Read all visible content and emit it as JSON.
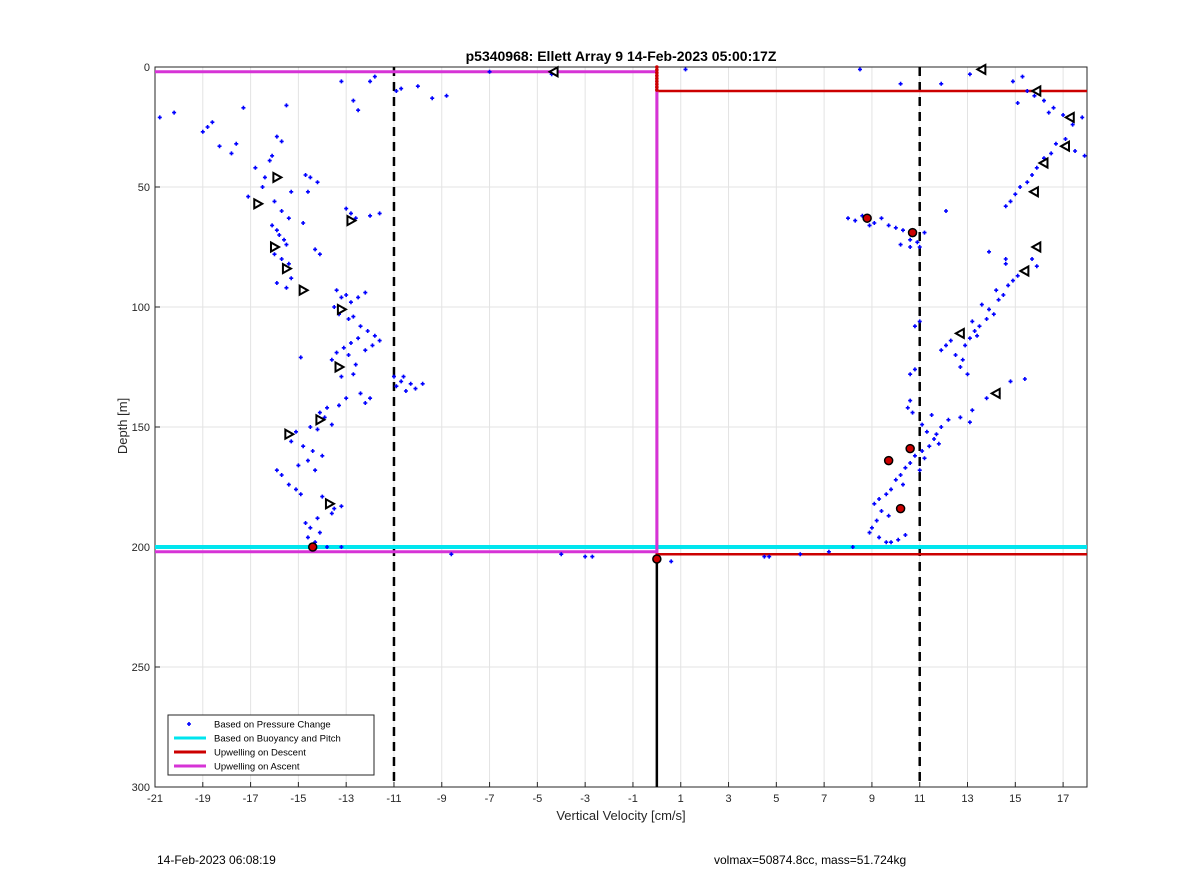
{
  "chart_data": {
    "type": "scatter",
    "title": "p5340968: Ellett Array 9 14-Feb-2023 05:00:17Z",
    "xlabel": "Vertical Velocity [cm/s]",
    "ylabel": "Depth [m]",
    "xlim": [
      -21,
      18
    ],
    "ylim": [
      0,
      300
    ],
    "y_reversed": true,
    "xticks": [
      -21,
      -19,
      -17,
      -15,
      -13,
      -11,
      -9,
      -7,
      -5,
      -3,
      -1,
      1,
      3,
      5,
      7,
      9,
      11,
      13,
      15,
      17
    ],
    "yticks": [
      0,
      50,
      100,
      150,
      200,
      250,
      300
    ],
    "grid": true,
    "legend_position": "bottom-left",
    "legend": [
      {
        "label": "Based on Pressure Change",
        "color": "#0000ff",
        "style": "dot"
      },
      {
        "label": "Based on Buoyancy and Pitch",
        "color": "#00e5ee",
        "style": "line"
      },
      {
        "label": "Upwelling on Descent",
        "color": "#cc0000",
        "style": "line"
      },
      {
        "label": "Upwelling on Ascent",
        "color": "#d633d6",
        "style": "line"
      }
    ],
    "colors": {
      "pressure_points": "#0000ff",
      "buoyancy_line": "#00e5ee",
      "descent_line": "#cc0000",
      "ascent_line": "#d633d6",
      "threshold_lines": "#000000",
      "zero_line": "#000000"
    },
    "threshold_x": [
      -11,
      11
    ],
    "zero_x": 0,
    "lines": {
      "ascent": [
        [
          -21,
          2
        ],
        [
          0,
          2
        ],
        [
          0,
          202
        ],
        [
          -21,
          202
        ]
      ],
      "descent": [
        [
          18,
          10
        ],
        [
          0,
          10
        ],
        [
          0,
          203
        ],
        [
          18,
          203
        ]
      ],
      "buoyancy": [
        [
          -21,
          200
        ],
        [
          18,
          200
        ]
      ]
    },
    "pressure_points": [
      [
        -20.8,
        21
      ],
      [
        -20.2,
        19
      ],
      [
        -19,
        27
      ],
      [
        -18.8,
        25
      ],
      [
        -18.6,
        23
      ],
      [
        -18.3,
        33
      ],
      [
        -17.8,
        36
      ],
      [
        -17.6,
        32
      ],
      [
        -17.3,
        17
      ],
      [
        -16.8,
        42
      ],
      [
        -17.1,
        54
      ],
      [
        -16.5,
        50
      ],
      [
        -16.4,
        46
      ],
      [
        -16.2,
        39
      ],
      [
        -16.1,
        37
      ],
      [
        -15.9,
        29
      ],
      [
        -15.7,
        31
      ],
      [
        -15.5,
        16
      ],
      [
        -16.0,
        56
      ],
      [
        -15.7,
        60
      ],
      [
        -15.3,
        52
      ],
      [
        -15.4,
        63
      ],
      [
        -16.1,
        66
      ],
      [
        -15.9,
        68
      ],
      [
        -15.8,
        70
      ],
      [
        -15.6,
        72
      ],
      [
        -15.5,
        74
      ],
      [
        -16.0,
        78
      ],
      [
        -15.7,
        80
      ],
      [
        -15.4,
        82
      ],
      [
        -15.3,
        88
      ],
      [
        -15.9,
        90
      ],
      [
        -15.5,
        92
      ],
      [
        -14.7,
        45
      ],
      [
        -14.5,
        46
      ],
      [
        -14.2,
        48
      ],
      [
        -14.6,
        52
      ],
      [
        -14.8,
        65
      ],
      [
        -14.3,
        76
      ],
      [
        -14.1,
        78
      ],
      [
        -13.2,
        6
      ],
      [
        -12.7,
        14
      ],
      [
        -12.5,
        18
      ],
      [
        -12.0,
        6
      ],
      [
        -11.8,
        4
      ],
      [
        -13.0,
        59
      ],
      [
        -12.8,
        61
      ],
      [
        -12.6,
        63
      ],
      [
        -12.0,
        62
      ],
      [
        -11.6,
        61
      ],
      [
        -13.4,
        93
      ],
      [
        -13.2,
        96
      ],
      [
        -13.0,
        95
      ],
      [
        -12.8,
        98
      ],
      [
        -12.5,
        96
      ],
      [
        -12.2,
        94
      ],
      [
        -13.5,
        100
      ],
      [
        -13.3,
        103
      ],
      [
        -12.9,
        105
      ],
      [
        -12.7,
        104
      ],
      [
        -12.4,
        108
      ],
      [
        -12.1,
        110
      ],
      [
        -11.8,
        112
      ],
      [
        -11.6,
        114
      ],
      [
        -11.9,
        116
      ],
      [
        -12.2,
        118
      ],
      [
        -12.5,
        113
      ],
      [
        -12.8,
        115
      ],
      [
        -13.1,
        117
      ],
      [
        -13.4,
        119
      ],
      [
        -13.6,
        122
      ],
      [
        -12.9,
        120
      ],
      [
        -12.6,
        124
      ],
      [
        -12.7,
        128
      ],
      [
        -13.2,
        129
      ],
      [
        -14.9,
        121
      ],
      [
        -13.0,
        138
      ],
      [
        -12.4,
        136
      ],
      [
        -12.2,
        140
      ],
      [
        -12.0,
        138
      ],
      [
        -13.3,
        141
      ],
      [
        -13.8,
        142
      ],
      [
        -14.1,
        144
      ],
      [
        -13.9,
        146
      ],
      [
        -13.6,
        149
      ],
      [
        -14.2,
        151
      ],
      [
        -14.5,
        150
      ],
      [
        -15.1,
        152
      ],
      [
        -15.3,
        156
      ],
      [
        -14.8,
        158
      ],
      [
        -14.4,
        160
      ],
      [
        -14.0,
        162
      ],
      [
        -14.6,
        164
      ],
      [
        -15.0,
        166
      ],
      [
        -14.3,
        168
      ],
      [
        -15.9,
        168
      ],
      [
        -15.7,
        170
      ],
      [
        -15.4,
        174
      ],
      [
        -15.1,
        176
      ],
      [
        -14.9,
        178
      ],
      [
        -14.0,
        179
      ],
      [
        -13.8,
        181
      ],
      [
        -13.5,
        184
      ],
      [
        -13.2,
        183
      ],
      [
        -13.6,
        186
      ],
      [
        -14.2,
        188
      ],
      [
        -14.7,
        190
      ],
      [
        -14.5,
        192
      ],
      [
        -14.1,
        194
      ],
      [
        -14.6,
        196
      ],
      [
        -14.3,
        198
      ],
      [
        -13.8,
        200
      ],
      [
        -13.2,
        200
      ],
      [
        -14.4,
        201
      ],
      [
        -10.9,
        133
      ],
      [
        -10.7,
        131
      ],
      [
        -10.5,
        135
      ],
      [
        -10.3,
        132
      ],
      [
        -10.1,
        134
      ],
      [
        -9.8,
        132
      ],
      [
        -10.6,
        129
      ],
      [
        -11.0,
        129
      ],
      [
        -10.9,
        10
      ],
      [
        -10.7,
        9
      ],
      [
        -10.0,
        8
      ],
      [
        -9.4,
        13
      ],
      [
        -8.8,
        12
      ],
      [
        -8.6,
        203
      ],
      [
        -7.0,
        2
      ],
      [
        -4.4,
        3
      ],
      [
        -4.0,
        203
      ],
      [
        -3.0,
        204
      ],
      [
        -2.7,
        204
      ],
      [
        0.6,
        206
      ],
      [
        1.2,
        1
      ],
      [
        4.5,
        204
      ],
      [
        4.7,
        204
      ],
      [
        6.0,
        203
      ],
      [
        7.2,
        202
      ],
      [
        8.2,
        200
      ],
      [
        8.5,
        1
      ],
      [
        8.0,
        63
      ],
      [
        8.3,
        64
      ],
      [
        8.6,
        62
      ],
      [
        8.9,
        66
      ],
      [
        9.1,
        65
      ],
      [
        9.4,
        63
      ],
      [
        9.7,
        66
      ],
      [
        10.0,
        67
      ],
      [
        10.3,
        68
      ],
      [
        10.6,
        72
      ],
      [
        10.9,
        73
      ],
      [
        11.2,
        69
      ],
      [
        11.0,
        75
      ],
      [
        10.6,
        75
      ],
      [
        10.2,
        74
      ],
      [
        12.1,
        60
      ],
      [
        11.9,
        7
      ],
      [
        10.2,
        7
      ],
      [
        13.1,
        3
      ],
      [
        11.9,
        118
      ],
      [
        12.1,
        116
      ],
      [
        12.3,
        114
      ],
      [
        12.5,
        120
      ],
      [
        12.8,
        122
      ],
      [
        12.9,
        116
      ],
      [
        13.1,
        113
      ],
      [
        13.3,
        110
      ],
      [
        13.5,
        108
      ],
      [
        13.8,
        105
      ],
      [
        14.1,
        103
      ],
      [
        13.9,
        101
      ],
      [
        13.6,
        99
      ],
      [
        14.3,
        97
      ],
      [
        14.5,
        95
      ],
      [
        14.2,
        93
      ],
      [
        14.7,
        91
      ],
      [
        14.9,
        89
      ],
      [
        15.1,
        87
      ],
      [
        15.5,
        85
      ],
      [
        15.9,
        83
      ],
      [
        15.7,
        80
      ],
      [
        14.6,
        82
      ],
      [
        13.2,
        106
      ],
      [
        13.4,
        112
      ],
      [
        12.7,
        125
      ],
      [
        13.0,
        128
      ],
      [
        14.8,
        131
      ],
      [
        15.4,
        130
      ],
      [
        14.3,
        136
      ],
      [
        13.8,
        138
      ],
      [
        13.2,
        143
      ],
      [
        12.7,
        146
      ],
      [
        13.1,
        148
      ],
      [
        12.2,
        147
      ],
      [
        11.5,
        145
      ],
      [
        11.1,
        149
      ],
      [
        11.3,
        152
      ],
      [
        11.6,
        155
      ],
      [
        11.8,
        157
      ],
      [
        11.1,
        160
      ],
      [
        10.8,
        162
      ],
      [
        10.6,
        165
      ],
      [
        10.4,
        167
      ],
      [
        10.2,
        170
      ],
      [
        10.0,
        172
      ],
      [
        10.3,
        174
      ],
      [
        9.8,
        176
      ],
      [
        9.6,
        178
      ],
      [
        9.3,
        180
      ],
      [
        9.1,
        182
      ],
      [
        9.4,
        185
      ],
      [
        9.7,
        187
      ],
      [
        9.2,
        189
      ],
      [
        9.0,
        192
      ],
      [
        8.9,
        194
      ],
      [
        9.3,
        196
      ],
      [
        9.6,
        198
      ],
      [
        9.8,
        198
      ],
      [
        10.1,
        197
      ],
      [
        10.4,
        195
      ],
      [
        11.0,
        168
      ],
      [
        11.2,
        163
      ],
      [
        11.4,
        158
      ],
      [
        11.7,
        153
      ],
      [
        11.9,
        150
      ],
      [
        10.7,
        144
      ],
      [
        10.5,
        142
      ],
      [
        10.8,
        126
      ],
      [
        10.6,
        128
      ],
      [
        10.6,
        139
      ],
      [
        10.8,
        108
      ],
      [
        11.0,
        106
      ],
      [
        13.9,
        77
      ],
      [
        14.6,
        80
      ],
      [
        15.3,
        4
      ],
      [
        15.1,
        15
      ],
      [
        14.9,
        6
      ],
      [
        15.5,
        10
      ],
      [
        15.8,
        12
      ],
      [
        16.2,
        14
      ],
      [
        16.6,
        17
      ],
      [
        16.4,
        19
      ],
      [
        17.0,
        20
      ],
      [
        17.4,
        24
      ],
      [
        17.8,
        21
      ],
      [
        17.9,
        37
      ],
      [
        17.5,
        35
      ],
      [
        17.1,
        30
      ],
      [
        16.7,
        32
      ],
      [
        16.5,
        36
      ],
      [
        16.2,
        38
      ],
      [
        15.9,
        42
      ],
      [
        15.7,
        45
      ],
      [
        15.5,
        48
      ],
      [
        15.2,
        50
      ],
      [
        15.0,
        53
      ],
      [
        14.8,
        56
      ],
      [
        14.6,
        58
      ]
    ],
    "descent_markers": [
      [
        -15.9,
        46
      ],
      [
        -16.7,
        57
      ],
      [
        -16.0,
        75
      ],
      [
        -15.5,
        84
      ],
      [
        -14.8,
        93
      ],
      [
        -12.8,
        64
      ],
      [
        -13.2,
        101
      ],
      [
        -13.3,
        125
      ],
      [
        -14.1,
        147
      ],
      [
        -15.4,
        153
      ],
      [
        -13.7,
        182
      ]
    ],
    "ascent_markers": [
      [
        -4.3,
        2
      ],
      [
        13.6,
        1
      ],
      [
        15.9,
        10
      ],
      [
        17.3,
        21
      ],
      [
        17.1,
        33
      ],
      [
        16.2,
        40
      ],
      [
        15.8,
        52
      ],
      [
        15.9,
        75
      ],
      [
        15.4,
        85
      ],
      [
        12.7,
        111
      ],
      [
        14.2,
        136
      ]
    ],
    "red_points": [
      [
        8.8,
        63
      ],
      [
        10.7,
        69
      ],
      [
        10.6,
        159
      ],
      [
        9.7,
        164
      ],
      [
        10.2,
        184
      ],
      [
        -14.4,
        200
      ],
      [
        0,
        205
      ]
    ],
    "footer_left": "14-Feb-2023 06:08:19",
    "footer_right": "volmax=50874.8cc, mass=51.724kg"
  }
}
